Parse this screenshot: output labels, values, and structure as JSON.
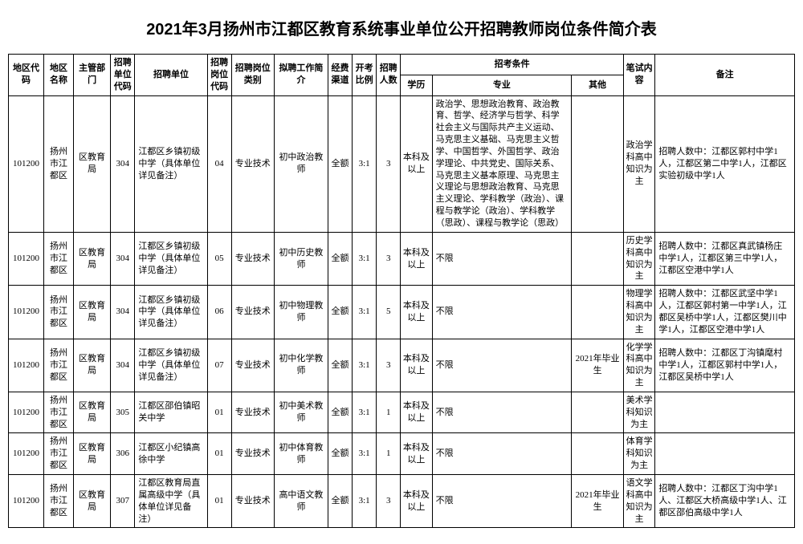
{
  "title": "2021年3月扬州市江都区教育系统事业单位公开招聘教师岗位条件简介表",
  "headers": {
    "region_code": "地区代码",
    "region_name": "地区名称",
    "dept": "主管部门",
    "unit_code": "招聘单位代码",
    "unit": "招聘单位",
    "pos_code": "招聘岗位代码",
    "pos_type": "招聘岗位类别",
    "job_desc": "拟聘工作简介",
    "fund": "经费渠道",
    "ratio": "开考比例",
    "count": "招聘人数",
    "conditions": "招考条件",
    "edu": "学历",
    "major": "专业",
    "other": "其他",
    "exam": "笔试内容",
    "remark": "备注"
  },
  "rows": [
    {
      "region_code": "101200",
      "region_name": "扬州市江都区",
      "dept": "区教育局",
      "unit_code": "304",
      "unit": "江都区乡镇初级中学（具体单位详见备注）",
      "pos_code": "04",
      "pos_type": "专业技术",
      "job_desc": "初中政治教师",
      "fund": "全额",
      "ratio": "3:1",
      "count": "3",
      "edu": "本科及以上",
      "major": "政治学、思想政治教育、政治教育、哲学、经济学与哲学、科学社会主义与国际共产主义运动、马克思主义基础、马克思主义哲学、中国哲学、外国哲学、政治学理论、中共党史、国际关系、马克思主义基本原理、马克思主义理论与思想政治教育、马克思主义理论、学科教学（政治）、课程与教学论（政治）、学科教学（思政）、课程与教学论（思政）",
      "other": "",
      "exam": "政治学科高中知识为主",
      "remark": "招聘人数中：江都区郭村中学1人，江都区第二中学1人，江都区实验初级中学1人"
    },
    {
      "region_code": "101200",
      "region_name": "扬州市江都区",
      "dept": "区教育局",
      "unit_code": "304",
      "unit": "江都区乡镇初级中学（具体单位详见备注）",
      "pos_code": "05",
      "pos_type": "专业技术",
      "job_desc": "初中历史教师",
      "fund": "全额",
      "ratio": "3:1",
      "count": "3",
      "edu": "本科及以上",
      "major": "不限",
      "other": "",
      "exam": "历史学科高中知识为主",
      "remark": "招聘人数中：江都区真武镇杨庄中学1人，江都区第三中学1人，江都区空港中学1人"
    },
    {
      "region_code": "101200",
      "region_name": "扬州市江都区",
      "dept": "区教育局",
      "unit_code": "304",
      "unit": "江都区乡镇初级中学（具体单位详见备注）",
      "pos_code": "06",
      "pos_type": "专业技术",
      "job_desc": "初中物理教师",
      "fund": "全额",
      "ratio": "3:1",
      "count": "5",
      "edu": "本科及以上",
      "major": "不限",
      "other": "",
      "exam": "物理学科高中知识为主",
      "remark": "招聘人数中：江都区武坚中学1人，江都区郭村第一中学1人，江都区吴桥中学1人，江都区樊川中学1人，江都区空港中学1人"
    },
    {
      "region_code": "101200",
      "region_name": "扬州市江都区",
      "dept": "区教育局",
      "unit_code": "304",
      "unit": "江都区乡镇初级中学（具体单位详见备注）",
      "pos_code": "07",
      "pos_type": "专业技术",
      "job_desc": "初中化学教师",
      "fund": "全额",
      "ratio": "3:1",
      "count": "3",
      "edu": "本科及以上",
      "major": "不限",
      "other": "2021年毕业生",
      "exam": "化学学科高中知识为主",
      "remark": "招聘人数中：江都区丁沟镇麾村中学1人，江都区郭村中学1人，江都区吴桥中学1人"
    },
    {
      "region_code": "101200",
      "region_name": "扬州市江都区",
      "dept": "区教育局",
      "unit_code": "305",
      "unit": "江都区邵伯镇昭关中学",
      "pos_code": "01",
      "pos_type": "专业技术",
      "job_desc": "初中美术教师",
      "fund": "全额",
      "ratio": "3:1",
      "count": "1",
      "edu": "本科及以上",
      "major": "不限",
      "other": "",
      "exam": "美术学科知识为主",
      "remark": ""
    },
    {
      "region_code": "101200",
      "region_name": "扬州市江都区",
      "dept": "区教育局",
      "unit_code": "306",
      "unit": "江都区小纪镇高徐中学",
      "pos_code": "01",
      "pos_type": "专业技术",
      "job_desc": "初中体育教师",
      "fund": "全额",
      "ratio": "3:1",
      "count": "1",
      "edu": "本科及以上",
      "major": "不限",
      "other": "",
      "exam": "体育学科知识为主",
      "remark": ""
    },
    {
      "region_code": "101200",
      "region_name": "扬州市江都区",
      "dept": "区教育局",
      "unit_code": "307",
      "unit": "江都区教育局直属高级中学（具体单位详见备注）",
      "pos_code": "01",
      "pos_type": "专业技术",
      "job_desc": "高中语文教师",
      "fund": "全额",
      "ratio": "3:1",
      "count": "3",
      "edu": "本科及以上",
      "major": "不限",
      "other": "2021年毕业生",
      "exam": "语文学科高中知识为主",
      "remark": "招聘人数中：江都区丁沟中学1人、江都区大桥高级中学1人、江都区邵伯高级中学1人"
    }
  ]
}
